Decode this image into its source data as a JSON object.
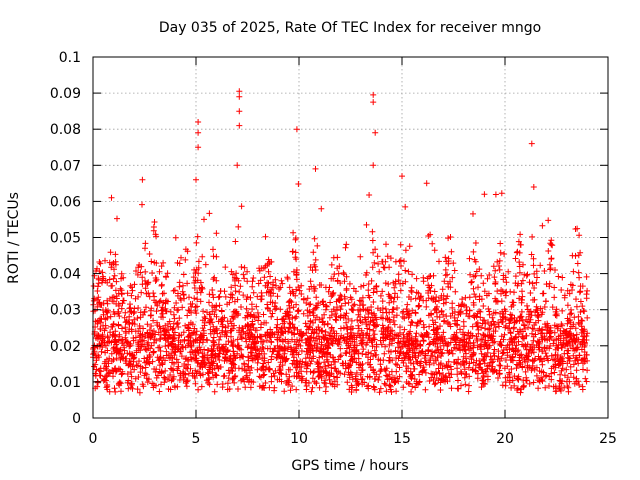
{
  "chart_data": {
    "type": "scatter",
    "title": "Day 035 of 2025, Rate Of TEC Index for receiver mngo",
    "xlabel": "GPS time / hours",
    "ylabel": "ROTI / TECUs",
    "xlim": [
      0,
      25
    ],
    "ylim": [
      0,
      0.1
    ],
    "xticks": [
      "0",
      "5",
      "10",
      "15",
      "20",
      "25"
    ],
    "yticks": [
      "0",
      "0.01",
      "0.02",
      "0.03",
      "0.04",
      "0.05",
      "0.06",
      "0.07",
      "0.08",
      "0.09",
      "0.1"
    ],
    "grid": true,
    "marker": "+",
    "series": [
      {
        "name": "ROTI",
        "color": "#ff0000",
        "data_range_hours": [
          0,
          24
        ],
        "notable_points": [
          {
            "x": 0.9,
            "y": 0.061
          },
          {
            "x": 2.4,
            "y": 0.066
          },
          {
            "x": 5.0,
            "y": 0.066
          },
          {
            "x": 5.1,
            "y": 0.082
          },
          {
            "x": 5.1,
            "y": 0.079
          },
          {
            "x": 5.1,
            "y": 0.075
          },
          {
            "x": 7.0,
            "y": 0.07
          },
          {
            "x": 7.1,
            "y": 0.0905
          },
          {
            "x": 7.1,
            "y": 0.089
          },
          {
            "x": 7.1,
            "y": 0.085
          },
          {
            "x": 7.1,
            "y": 0.081
          },
          {
            "x": 9.9,
            "y": 0.08
          },
          {
            "x": 10.8,
            "y": 0.069
          },
          {
            "x": 13.6,
            "y": 0.0895
          },
          {
            "x": 13.6,
            "y": 0.0875
          },
          {
            "x": 13.7,
            "y": 0.079
          },
          {
            "x": 13.6,
            "y": 0.07
          },
          {
            "x": 15.0,
            "y": 0.067
          },
          {
            "x": 16.2,
            "y": 0.065
          },
          {
            "x": 19.0,
            "y": 0.062
          },
          {
            "x": 21.3,
            "y": 0.076
          },
          {
            "x": 21.4,
            "y": 0.064
          }
        ]
      }
    ]
  }
}
